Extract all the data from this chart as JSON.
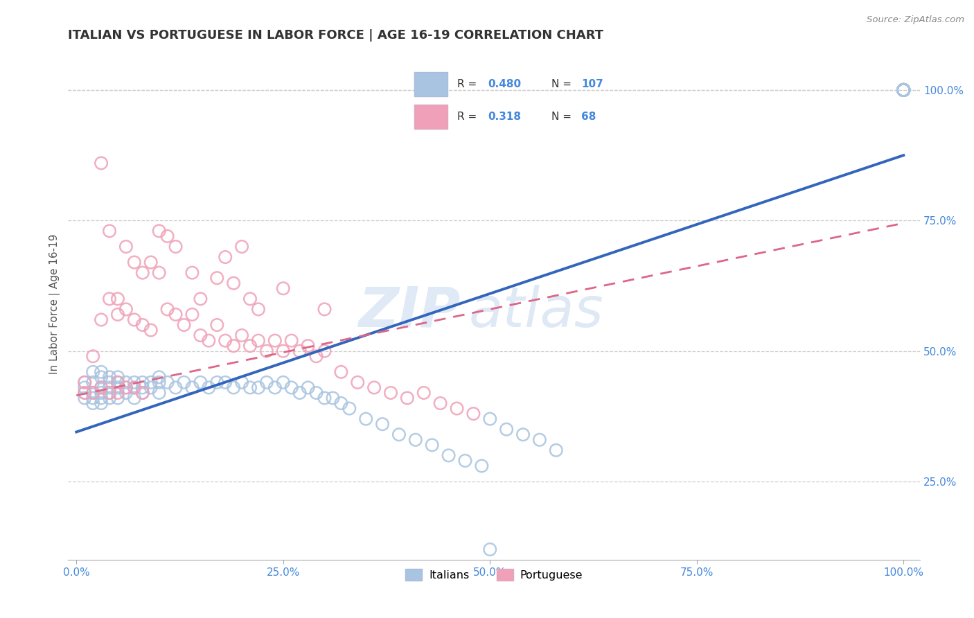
{
  "title": "ITALIAN VS PORTUGUESE IN LABOR FORCE | AGE 16-19 CORRELATION CHART",
  "source_text": "Source: ZipAtlas.com",
  "ylabel": "In Labor Force | Age 16-19",
  "xlim": [
    -0.01,
    1.02
  ],
  "ylim": [
    0.1,
    1.08
  ],
  "xticks": [
    0.0,
    0.25,
    0.5,
    0.75,
    1.0
  ],
  "xticklabels": [
    "0.0%",
    "25.0%",
    "50.0%",
    "75.0%",
    "100.0%"
  ],
  "yticks": [
    0.25,
    0.5,
    0.75,
    1.0
  ],
  "yticklabels": [
    "25.0%",
    "50.0%",
    "75.0%",
    "100.0%"
  ],
  "legend_r_italian": "0.480",
  "legend_n_italian": "107",
  "legend_r_portuguese": "0.318",
  "legend_n_portuguese": "68",
  "italian_color": "#a8c4e0",
  "portuguese_color": "#f0a0b8",
  "italian_line_color": "#3366bb",
  "portuguese_line_color": "#dd6688",
  "watermark_zip": "ZIP",
  "watermark_atlas": "atlas",
  "background_color": "#ffffff",
  "grid_color": "#cccccc",
  "title_color": "#333333",
  "tick_color": "#4488dd",
  "italian_line": {
    "x0": 0.0,
    "x1": 1.0,
    "y0": 0.345,
    "y1": 0.875
  },
  "portuguese_line": {
    "x0": 0.0,
    "x1": 1.0,
    "y0": 0.415,
    "y1": 0.745
  },
  "italian_x": [
    0.01,
    0.01,
    0.01,
    0.01,
    0.02,
    0.02,
    0.02,
    0.02,
    0.02,
    0.03,
    0.03,
    0.03,
    0.03,
    0.03,
    0.03,
    0.04,
    0.04,
    0.04,
    0.04,
    0.04,
    0.05,
    0.05,
    0.05,
    0.05,
    0.06,
    0.06,
    0.06,
    0.07,
    0.07,
    0.07,
    0.08,
    0.08,
    0.08,
    0.09,
    0.09,
    0.1,
    0.1,
    0.1,
    0.11,
    0.12,
    0.13,
    0.14,
    0.15,
    0.16,
    0.17,
    0.18,
    0.19,
    0.2,
    0.21,
    0.22,
    0.23,
    0.24,
    0.25,
    0.26,
    0.27,
    0.28,
    0.29,
    0.3,
    0.31,
    0.32,
    0.33,
    0.35,
    0.37,
    0.39,
    0.41,
    0.43,
    0.45,
    0.47,
    0.49,
    0.5,
    0.52,
    0.54,
    0.56,
    0.58,
    0.5,
    1.0,
    1.0,
    1.0,
    1.0,
    1.0,
    1.0,
    1.0,
    1.0,
    1.0,
    1.0,
    1.0,
    1.0,
    1.0,
    1.0,
    1.0,
    1.0,
    1.0,
    1.0,
    1.0,
    1.0,
    1.0,
    1.0,
    1.0,
    1.0,
    1.0,
    1.0,
    1.0,
    1.0,
    1.0,
    1.0,
    1.0,
    1.0
  ],
  "italian_y": [
    0.44,
    0.43,
    0.42,
    0.41,
    0.46,
    0.44,
    0.42,
    0.41,
    0.4,
    0.46,
    0.45,
    0.43,
    0.42,
    0.41,
    0.4,
    0.45,
    0.44,
    0.43,
    0.42,
    0.41,
    0.45,
    0.44,
    0.43,
    0.41,
    0.44,
    0.43,
    0.42,
    0.44,
    0.43,
    0.41,
    0.44,
    0.43,
    0.42,
    0.44,
    0.43,
    0.45,
    0.44,
    0.42,
    0.44,
    0.43,
    0.44,
    0.43,
    0.44,
    0.43,
    0.44,
    0.44,
    0.43,
    0.44,
    0.43,
    0.43,
    0.44,
    0.43,
    0.44,
    0.43,
    0.42,
    0.43,
    0.42,
    0.41,
    0.41,
    0.4,
    0.39,
    0.37,
    0.36,
    0.34,
    0.33,
    0.32,
    0.3,
    0.29,
    0.28,
    0.37,
    0.35,
    0.34,
    0.33,
    0.31,
    0.12,
    1.0,
    1.0,
    1.0,
    1.0,
    1.0,
    1.0,
    1.0,
    1.0,
    1.0,
    1.0,
    1.0,
    1.0,
    1.0,
    1.0,
    1.0,
    1.0,
    1.0,
    1.0,
    1.0,
    1.0,
    1.0,
    1.0,
    1.0,
    1.0,
    1.0,
    1.0,
    1.0,
    1.0,
    1.0,
    1.0,
    1.0,
    1.0
  ],
  "portuguese_x": [
    0.01,
    0.01,
    0.02,
    0.02,
    0.03,
    0.03,
    0.04,
    0.04,
    0.05,
    0.05,
    0.05,
    0.06,
    0.06,
    0.07,
    0.07,
    0.08,
    0.08,
    0.09,
    0.1,
    0.11,
    0.12,
    0.13,
    0.14,
    0.15,
    0.16,
    0.17,
    0.18,
    0.19,
    0.2,
    0.21,
    0.22,
    0.23,
    0.24,
    0.25,
    0.26,
    0.27,
    0.28,
    0.29,
    0.3,
    0.32,
    0.34,
    0.36,
    0.38,
    0.4,
    0.42,
    0.44,
    0.46,
    0.48,
    0.2,
    0.25,
    0.3,
    0.18,
    0.22,
    0.1,
    0.12,
    0.14,
    0.08,
    0.06,
    0.04,
    0.03,
    0.05,
    0.07,
    0.09,
    0.11,
    0.15,
    0.17,
    0.19,
    0.21
  ],
  "portuguese_y": [
    0.44,
    0.42,
    0.49,
    0.42,
    0.56,
    0.43,
    0.6,
    0.42,
    0.57,
    0.44,
    0.42,
    0.58,
    0.43,
    0.56,
    0.43,
    0.55,
    0.42,
    0.54,
    0.65,
    0.58,
    0.57,
    0.55,
    0.57,
    0.53,
    0.52,
    0.55,
    0.52,
    0.51,
    0.53,
    0.51,
    0.52,
    0.5,
    0.52,
    0.5,
    0.52,
    0.5,
    0.51,
    0.49,
    0.5,
    0.46,
    0.44,
    0.43,
    0.42,
    0.41,
    0.42,
    0.4,
    0.39,
    0.38,
    0.7,
    0.62,
    0.58,
    0.68,
    0.58,
    0.73,
    0.7,
    0.65,
    0.65,
    0.7,
    0.73,
    0.86,
    0.6,
    0.67,
    0.67,
    0.72,
    0.6,
    0.64,
    0.63,
    0.6
  ]
}
